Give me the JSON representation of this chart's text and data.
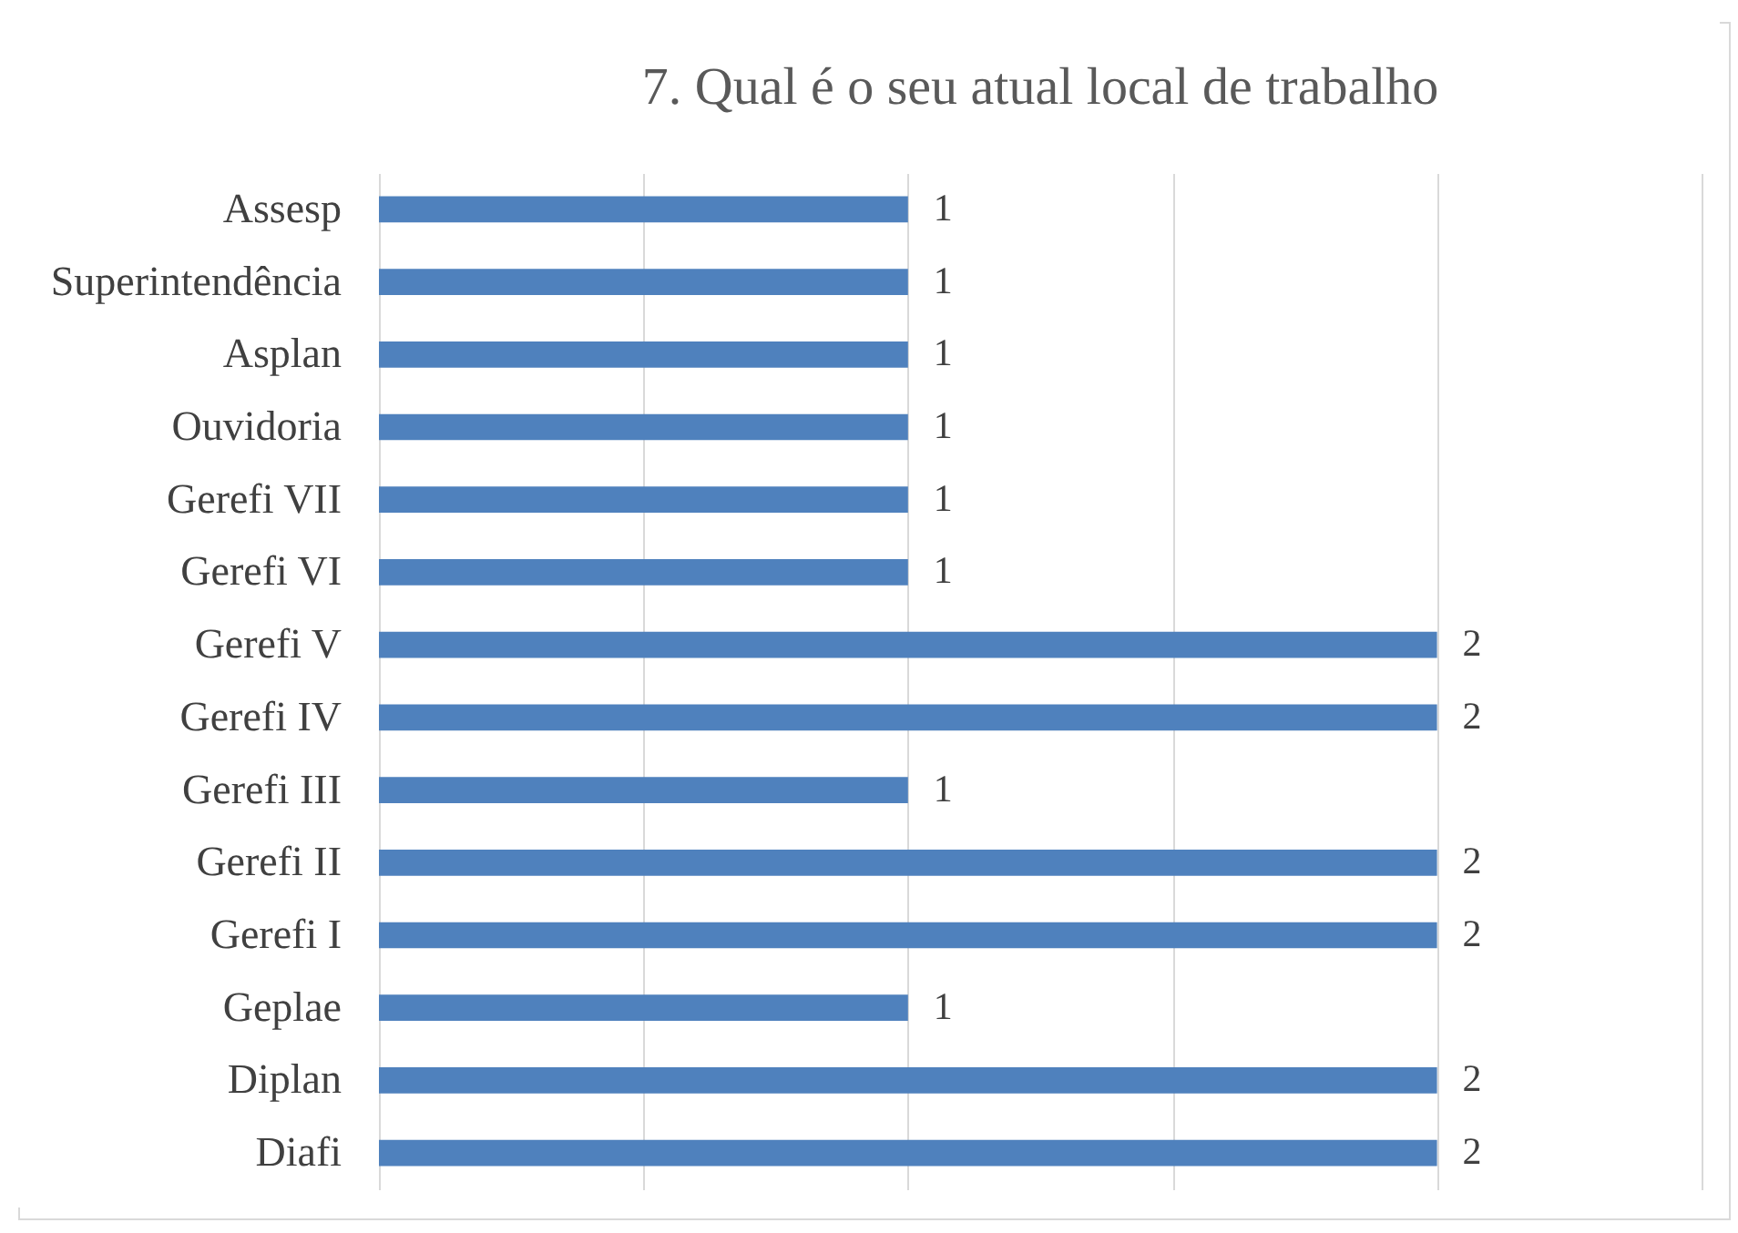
{
  "chart_data": {
    "type": "bar",
    "orientation": "horizontal",
    "title": "7. Qual é o seu atual local de trabalho",
    "categories": [
      "Assesp",
      "Superintendência",
      "Asplan",
      "Ouvidoria",
      "Gerefi VII",
      "Gerefi VI",
      "Gerefi V",
      "Gerefi IV",
      "Gerefi III",
      "Gerefi II",
      "Gerefi I",
      "Geplae",
      "Diplan",
      "Diafi"
    ],
    "values": [
      1,
      1,
      1,
      1,
      1,
      1,
      2,
      2,
      1,
      2,
      2,
      1,
      2,
      2
    ],
    "color": "#4f81bd",
    "xlim": [
      0,
      2.5
    ],
    "xticks": [
      {
        "value": 0,
        "label": null
      },
      {
        "value": 0.5,
        "label": null
      },
      {
        "value": 1,
        "label": null
      },
      {
        "value": 1.5,
        "label": null
      },
      {
        "value": 2,
        "label": null
      },
      {
        "value": 2.5,
        "label": null
      }
    ],
    "tick_labels": "y",
    "grid": "x",
    "data_labels": true
  }
}
